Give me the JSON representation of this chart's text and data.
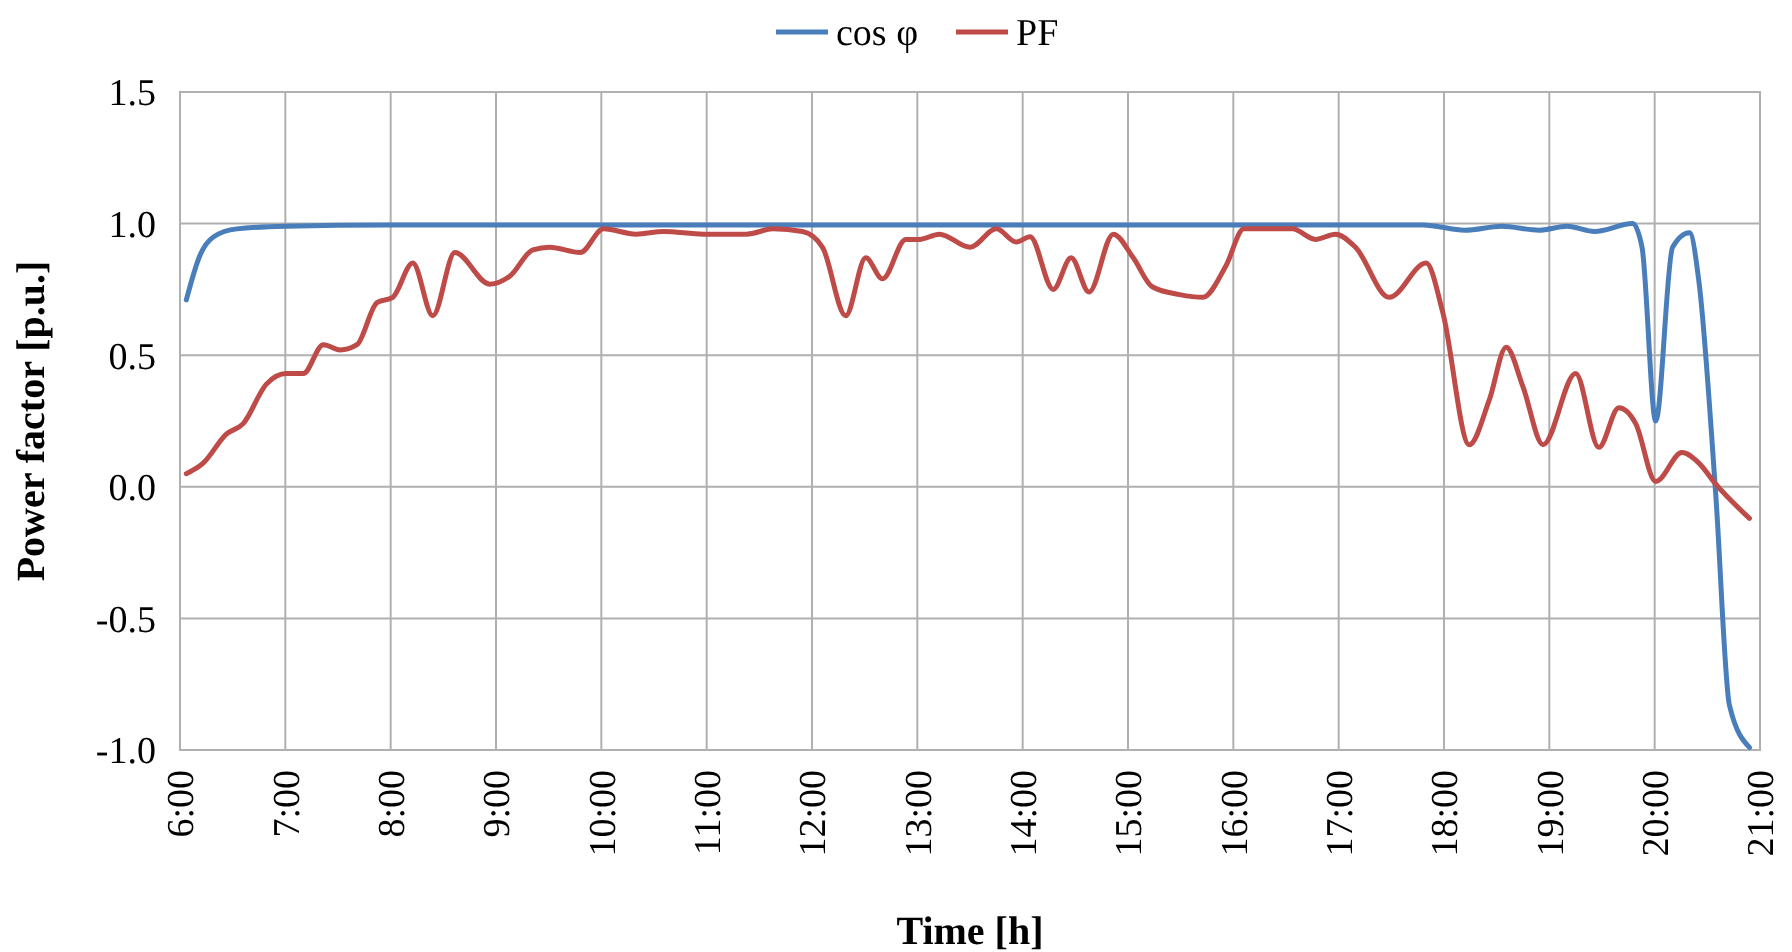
{
  "chart_data": {
    "type": "line",
    "xlabel": "Time [h]",
    "ylabel": "Power factor [p.u.]",
    "xlim": [
      6,
      21
    ],
    "xticks": [
      {
        "value": 6,
        "label": "6:00"
      },
      {
        "value": 7,
        "label": "7:00"
      },
      {
        "value": 8,
        "label": "8:00"
      },
      {
        "value": 9,
        "label": "9:00"
      },
      {
        "value": 10,
        "label": "10:00"
      },
      {
        "value": 11,
        "label": "11:00"
      },
      {
        "value": 12,
        "label": "12:00"
      },
      {
        "value": 13,
        "label": "13:00"
      },
      {
        "value": 14,
        "label": "14:00"
      },
      {
        "value": 15,
        "label": "15:00"
      },
      {
        "value": 16,
        "label": "16:00"
      },
      {
        "value": 17,
        "label": "17:00"
      },
      {
        "value": 18,
        "label": "18:00"
      },
      {
        "value": 19,
        "label": "19:00"
      },
      {
        "value": 20,
        "label": "20:00"
      },
      {
        "value": 21,
        "label": "21:00"
      }
    ],
    "ylim": [
      -1,
      1.5
    ],
    "yticks": [
      {
        "value": -1,
        "label": "-1.0"
      },
      {
        "value": -0.5,
        "label": "-0.5"
      },
      {
        "value": 0,
        "label": "0.0"
      },
      {
        "value": 0.5,
        "label": "0.5"
      },
      {
        "value": 1,
        "label": "1.0"
      },
      {
        "value": 1.5,
        "label": "1.5"
      }
    ],
    "grid": true,
    "legend": "top",
    "line_style": "solid",
    "marker": "none",
    "series": [
      {
        "name": "cos φ",
        "color": "#4a7ebb",
        "x": [
          6.06,
          6.19,
          6.32,
          6.54,
          7.0,
          8,
          9,
          10,
          11,
          12,
          13,
          14,
          15,
          16,
          17,
          17.8,
          18.2,
          18.55,
          18.9,
          19.17,
          19.43,
          19.79,
          19.88,
          20.01,
          20.17,
          20.33,
          20.42,
          20.58,
          20.71,
          20.9
        ],
        "values": [
          0.71,
          0.88,
          0.95,
          0.98,
          0.99,
          0.995,
          0.995,
          0.995,
          0.995,
          0.995,
          0.995,
          0.995,
          0.995,
          0.995,
          0.995,
          0.995,
          0.975,
          0.99,
          0.975,
          0.99,
          0.97,
          1.0,
          0.91,
          0.25,
          0.91,
          0.965,
          0.78,
          -0.03,
          -0.83,
          -0.99
        ]
      },
      {
        "name": "PF",
        "color": "#be4b48",
        "x": [
          6.06,
          6.22,
          6.44,
          6.6,
          6.82,
          7.01,
          7.17,
          7.36,
          7.52,
          7.68,
          7.87,
          8.02,
          8.21,
          8.4,
          8.61,
          8.94,
          9.13,
          9.35,
          9.51,
          9.8,
          10.02,
          10.33,
          10.59,
          10.97,
          11.38,
          11.63,
          11.91,
          12.1,
          12.32,
          12.51,
          12.67,
          12.89,
          13.02,
          13.21,
          13.5,
          13.75,
          13.94,
          14.07,
          14.29,
          14.46,
          14.63,
          14.86,
          15.05,
          15.23,
          15.49,
          15.71,
          15.93,
          16.1,
          16.56,
          16.78,
          16.97,
          17.16,
          17.48,
          17.83,
          17.99,
          18.24,
          18.43,
          18.59,
          18.75,
          18.94,
          19.25,
          19.47,
          19.66,
          19.82,
          20.01,
          20.26,
          20.42,
          20.58,
          20.9
        ],
        "values": [
          0.05,
          0.09,
          0.2,
          0.24,
          0.39,
          0.43,
          0.43,
          0.54,
          0.52,
          0.54,
          0.7,
          0.72,
          0.85,
          0.65,
          0.89,
          0.77,
          0.8,
          0.9,
          0.91,
          0.89,
          0.98,
          0.96,
          0.97,
          0.96,
          0.96,
          0.98,
          0.97,
          0.91,
          0.65,
          0.87,
          0.79,
          0.94,
          0.94,
          0.96,
          0.91,
          0.98,
          0.93,
          0.95,
          0.75,
          0.87,
          0.74,
          0.96,
          0.87,
          0.76,
          0.73,
          0.72,
          0.84,
          0.98,
          0.98,
          0.94,
          0.96,
          0.91,
          0.72,
          0.85,
          0.66,
          0.16,
          0.33,
          0.53,
          0.38,
          0.16,
          0.43,
          0.15,
          0.3,
          0.24,
          0.02,
          0.13,
          0.09,
          0.01,
          -0.12
        ]
      }
    ]
  }
}
